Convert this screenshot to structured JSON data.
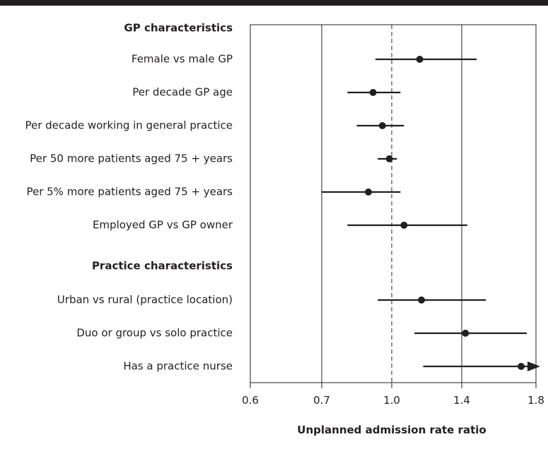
{
  "chart_data": {
    "type": "forest",
    "title": "",
    "xlabel": "Unplanned admission rate ratio",
    "ylabel": "",
    "x_scale": "log",
    "xlim": [
      0.6,
      1.8
    ],
    "x_ticks": [
      "0.6",
      "0.7",
      "1.0",
      "1.4",
      "1.8"
    ],
    "x_tick_values": [
      0.6,
      0.7,
      1.0,
      1.4,
      1.8
    ],
    "reference_line": 1.0,
    "vertical_gridlines": [
      0.7,
      1.4
    ],
    "groups": [
      {
        "header": "GP characteristics",
        "rows": [
          {
            "label": "Female vs male GP",
            "estimate": 1.16,
            "ci_low": 0.93,
            "ci_high": 1.48
          },
          {
            "label": "Per decade GP age",
            "estimate": 0.92,
            "ci_low": 0.81,
            "ci_high": 1.05
          },
          {
            "label": "Per decade working in general practice",
            "estimate": 0.96,
            "ci_low": 0.85,
            "ci_high": 1.07
          },
          {
            "label": "Per 50 more patients aged 75 + years",
            "estimate": 0.99,
            "ci_low": 0.94,
            "ci_high": 1.03
          },
          {
            "label": "Per 5% more patients aged 75 + years",
            "estimate": 0.9,
            "ci_low": 0.7,
            "ci_high": 1.05
          },
          {
            "label": "Employed GP vs GP owner",
            "estimate": 1.07,
            "ci_low": 0.81,
            "ci_high": 1.43
          }
        ]
      },
      {
        "header": "Practice characteristics",
        "rows": [
          {
            "label": "Urban vs rural (practice location)",
            "estimate": 1.17,
            "ci_low": 0.94,
            "ci_high": 1.53
          },
          {
            "label": "Duo or group vs solo practice",
            "estimate": 1.42,
            "ci_low": 1.13,
            "ci_high": 1.75
          },
          {
            "label": "Has a practice nurse",
            "estimate": 1.72,
            "ci_low": 1.18,
            "ci_high": 1.8,
            "ci_truncated_high": true
          }
        ]
      }
    ]
  }
}
